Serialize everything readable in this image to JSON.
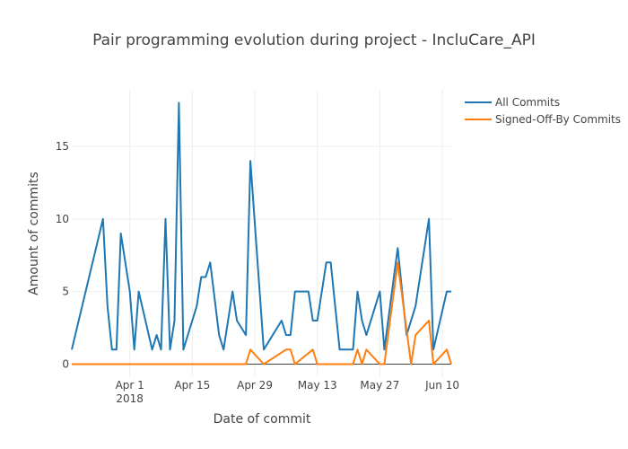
{
  "chart_data": {
    "type": "line",
    "title": "Pair programming evolution during project - IncluCare_API",
    "xlabel": "Date of commit",
    "ylabel": "Amount of commits",
    "x_range": [
      "2018-03-19",
      "2018-06-12"
    ],
    "ylim": [
      -0.9,
      18.9
    ],
    "y_ticks": [
      0,
      5,
      10,
      15
    ],
    "x_ticks": [
      {
        "date": "2018-04-01",
        "label": "Apr 1",
        "sublabel": "2018"
      },
      {
        "date": "2018-04-15",
        "label": "Apr 15",
        "sublabel": ""
      },
      {
        "date": "2018-04-29",
        "label": "Apr 29",
        "sublabel": ""
      },
      {
        "date": "2018-05-13",
        "label": "May 13",
        "sublabel": ""
      },
      {
        "date": "2018-05-27",
        "label": "May 27",
        "sublabel": ""
      },
      {
        "date": "2018-06-10",
        "label": "Jun 10",
        "sublabel": ""
      }
    ],
    "grid": true,
    "legend_position": "top-right",
    "series": [
      {
        "name": "All Commits",
        "color": "#1f77b4",
        "points": [
          [
            "2018-03-19",
            1
          ],
          [
            "2018-03-26",
            10
          ],
          [
            "2018-03-27",
            4
          ],
          [
            "2018-03-28",
            1
          ],
          [
            "2018-03-29",
            1
          ],
          [
            "2018-03-30",
            9
          ],
          [
            "2018-04-01",
            5
          ],
          [
            "2018-04-02",
            1
          ],
          [
            "2018-04-03",
            5
          ],
          [
            "2018-04-06",
            1
          ],
          [
            "2018-04-07",
            2
          ],
          [
            "2018-04-08",
            1
          ],
          [
            "2018-04-09",
            10
          ],
          [
            "2018-04-10",
            1
          ],
          [
            "2018-04-11",
            3
          ],
          [
            "2018-04-12",
            18
          ],
          [
            "2018-04-13",
            1
          ],
          [
            "2018-04-16",
            4
          ],
          [
            "2018-04-17",
            6
          ],
          [
            "2018-04-18",
            6
          ],
          [
            "2018-04-19",
            7
          ],
          [
            "2018-04-21",
            2
          ],
          [
            "2018-04-22",
            1
          ],
          [
            "2018-04-24",
            5
          ],
          [
            "2018-04-25",
            3
          ],
          [
            "2018-04-27",
            2
          ],
          [
            "2018-04-28",
            14
          ],
          [
            "2018-05-01",
            1
          ],
          [
            "2018-05-05",
            3
          ],
          [
            "2018-05-06",
            2
          ],
          [
            "2018-05-07",
            2
          ],
          [
            "2018-05-08",
            5
          ],
          [
            "2018-05-11",
            5
          ],
          [
            "2018-05-12",
            3
          ],
          [
            "2018-05-13",
            3
          ],
          [
            "2018-05-15",
            7
          ],
          [
            "2018-05-16",
            7
          ],
          [
            "2018-05-18",
            1
          ],
          [
            "2018-05-21",
            1
          ],
          [
            "2018-05-22",
            5
          ],
          [
            "2018-05-23",
            3
          ],
          [
            "2018-05-24",
            2
          ],
          [
            "2018-05-27",
            5
          ],
          [
            "2018-05-28",
            1
          ],
          [
            "2018-05-31",
            8
          ],
          [
            "2018-06-02",
            2
          ],
          [
            "2018-06-04",
            4
          ],
          [
            "2018-06-07",
            10
          ],
          [
            "2018-06-08",
            1
          ],
          [
            "2018-06-11",
            5
          ],
          [
            "2018-06-12",
            5
          ]
        ]
      },
      {
        "name": "Signed-Off-By Commits",
        "color": "#ff7f0e",
        "points": [
          [
            "2018-03-19",
            0
          ],
          [
            "2018-04-27",
            0
          ],
          [
            "2018-04-28",
            1
          ],
          [
            "2018-05-01",
            0
          ],
          [
            "2018-05-06",
            1
          ],
          [
            "2018-05-07",
            1
          ],
          [
            "2018-05-08",
            0
          ],
          [
            "2018-05-12",
            1
          ],
          [
            "2018-05-13",
            0
          ],
          [
            "2018-05-21",
            0
          ],
          [
            "2018-05-22",
            1
          ],
          [
            "2018-05-23",
            0
          ],
          [
            "2018-05-24",
            1
          ],
          [
            "2018-05-27",
            0
          ],
          [
            "2018-05-28",
            0
          ],
          [
            "2018-05-31",
            7
          ],
          [
            "2018-06-03",
            0
          ],
          [
            "2018-06-04",
            2
          ],
          [
            "2018-06-07",
            3
          ],
          [
            "2018-06-08",
            0
          ],
          [
            "2018-06-11",
            1
          ],
          [
            "2018-06-12",
            0
          ]
        ]
      }
    ]
  }
}
